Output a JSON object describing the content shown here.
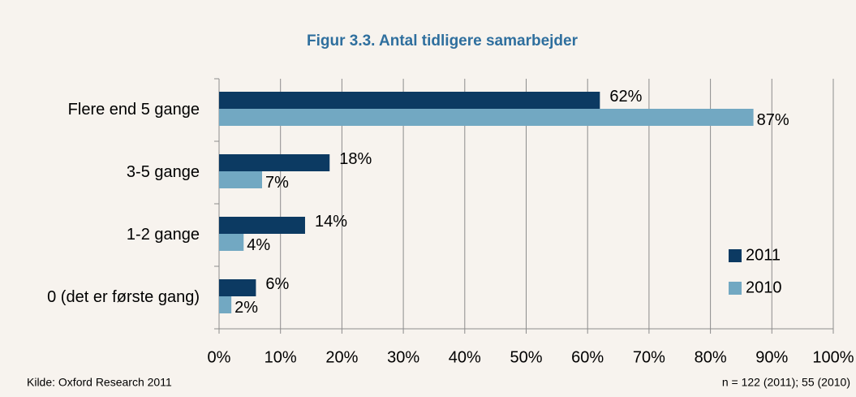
{
  "chart_data": {
    "type": "hbar",
    "title": "Figur 3.3. Antal tidligere samarbejder",
    "categories": [
      "Flere end 5 gange",
      "3-5 gange",
      "1-2 gange",
      "0 (det er første gang)"
    ],
    "series": [
      {
        "name": "2011",
        "color": "#0c3a62",
        "values": [
          62,
          18,
          14,
          6
        ],
        "value_labels": [
          "62%",
          "18%",
          "14%",
          "6%"
        ]
      },
      {
        "name": "2010",
        "color": "#72a8c2",
        "values": [
          87,
          7,
          4,
          2
        ],
        "value_labels": [
          "87%",
          "7%",
          "4%",
          "2%"
        ]
      }
    ],
    "xlim": [
      0,
      100
    ],
    "xticks": [
      {
        "value": 0,
        "label": "0%"
      },
      {
        "value": 10,
        "label": "10%"
      },
      {
        "value": 20,
        "label": "20%"
      },
      {
        "value": 30,
        "label": "30%"
      },
      {
        "value": 40,
        "label": "40%"
      },
      {
        "value": 50,
        "label": "50%"
      },
      {
        "value": 60,
        "label": "60%"
      },
      {
        "value": 70,
        "label": "70%"
      },
      {
        "value": 80,
        "label": "80%"
      },
      {
        "value": 90,
        "label": "90%"
      },
      {
        "value": 100,
        "label": "100%"
      }
    ],
    "grid": true,
    "legend": "right",
    "source": "Kilde: Oxford Research 2011",
    "note": "n = 122 (2011); 55 (2010)"
  }
}
